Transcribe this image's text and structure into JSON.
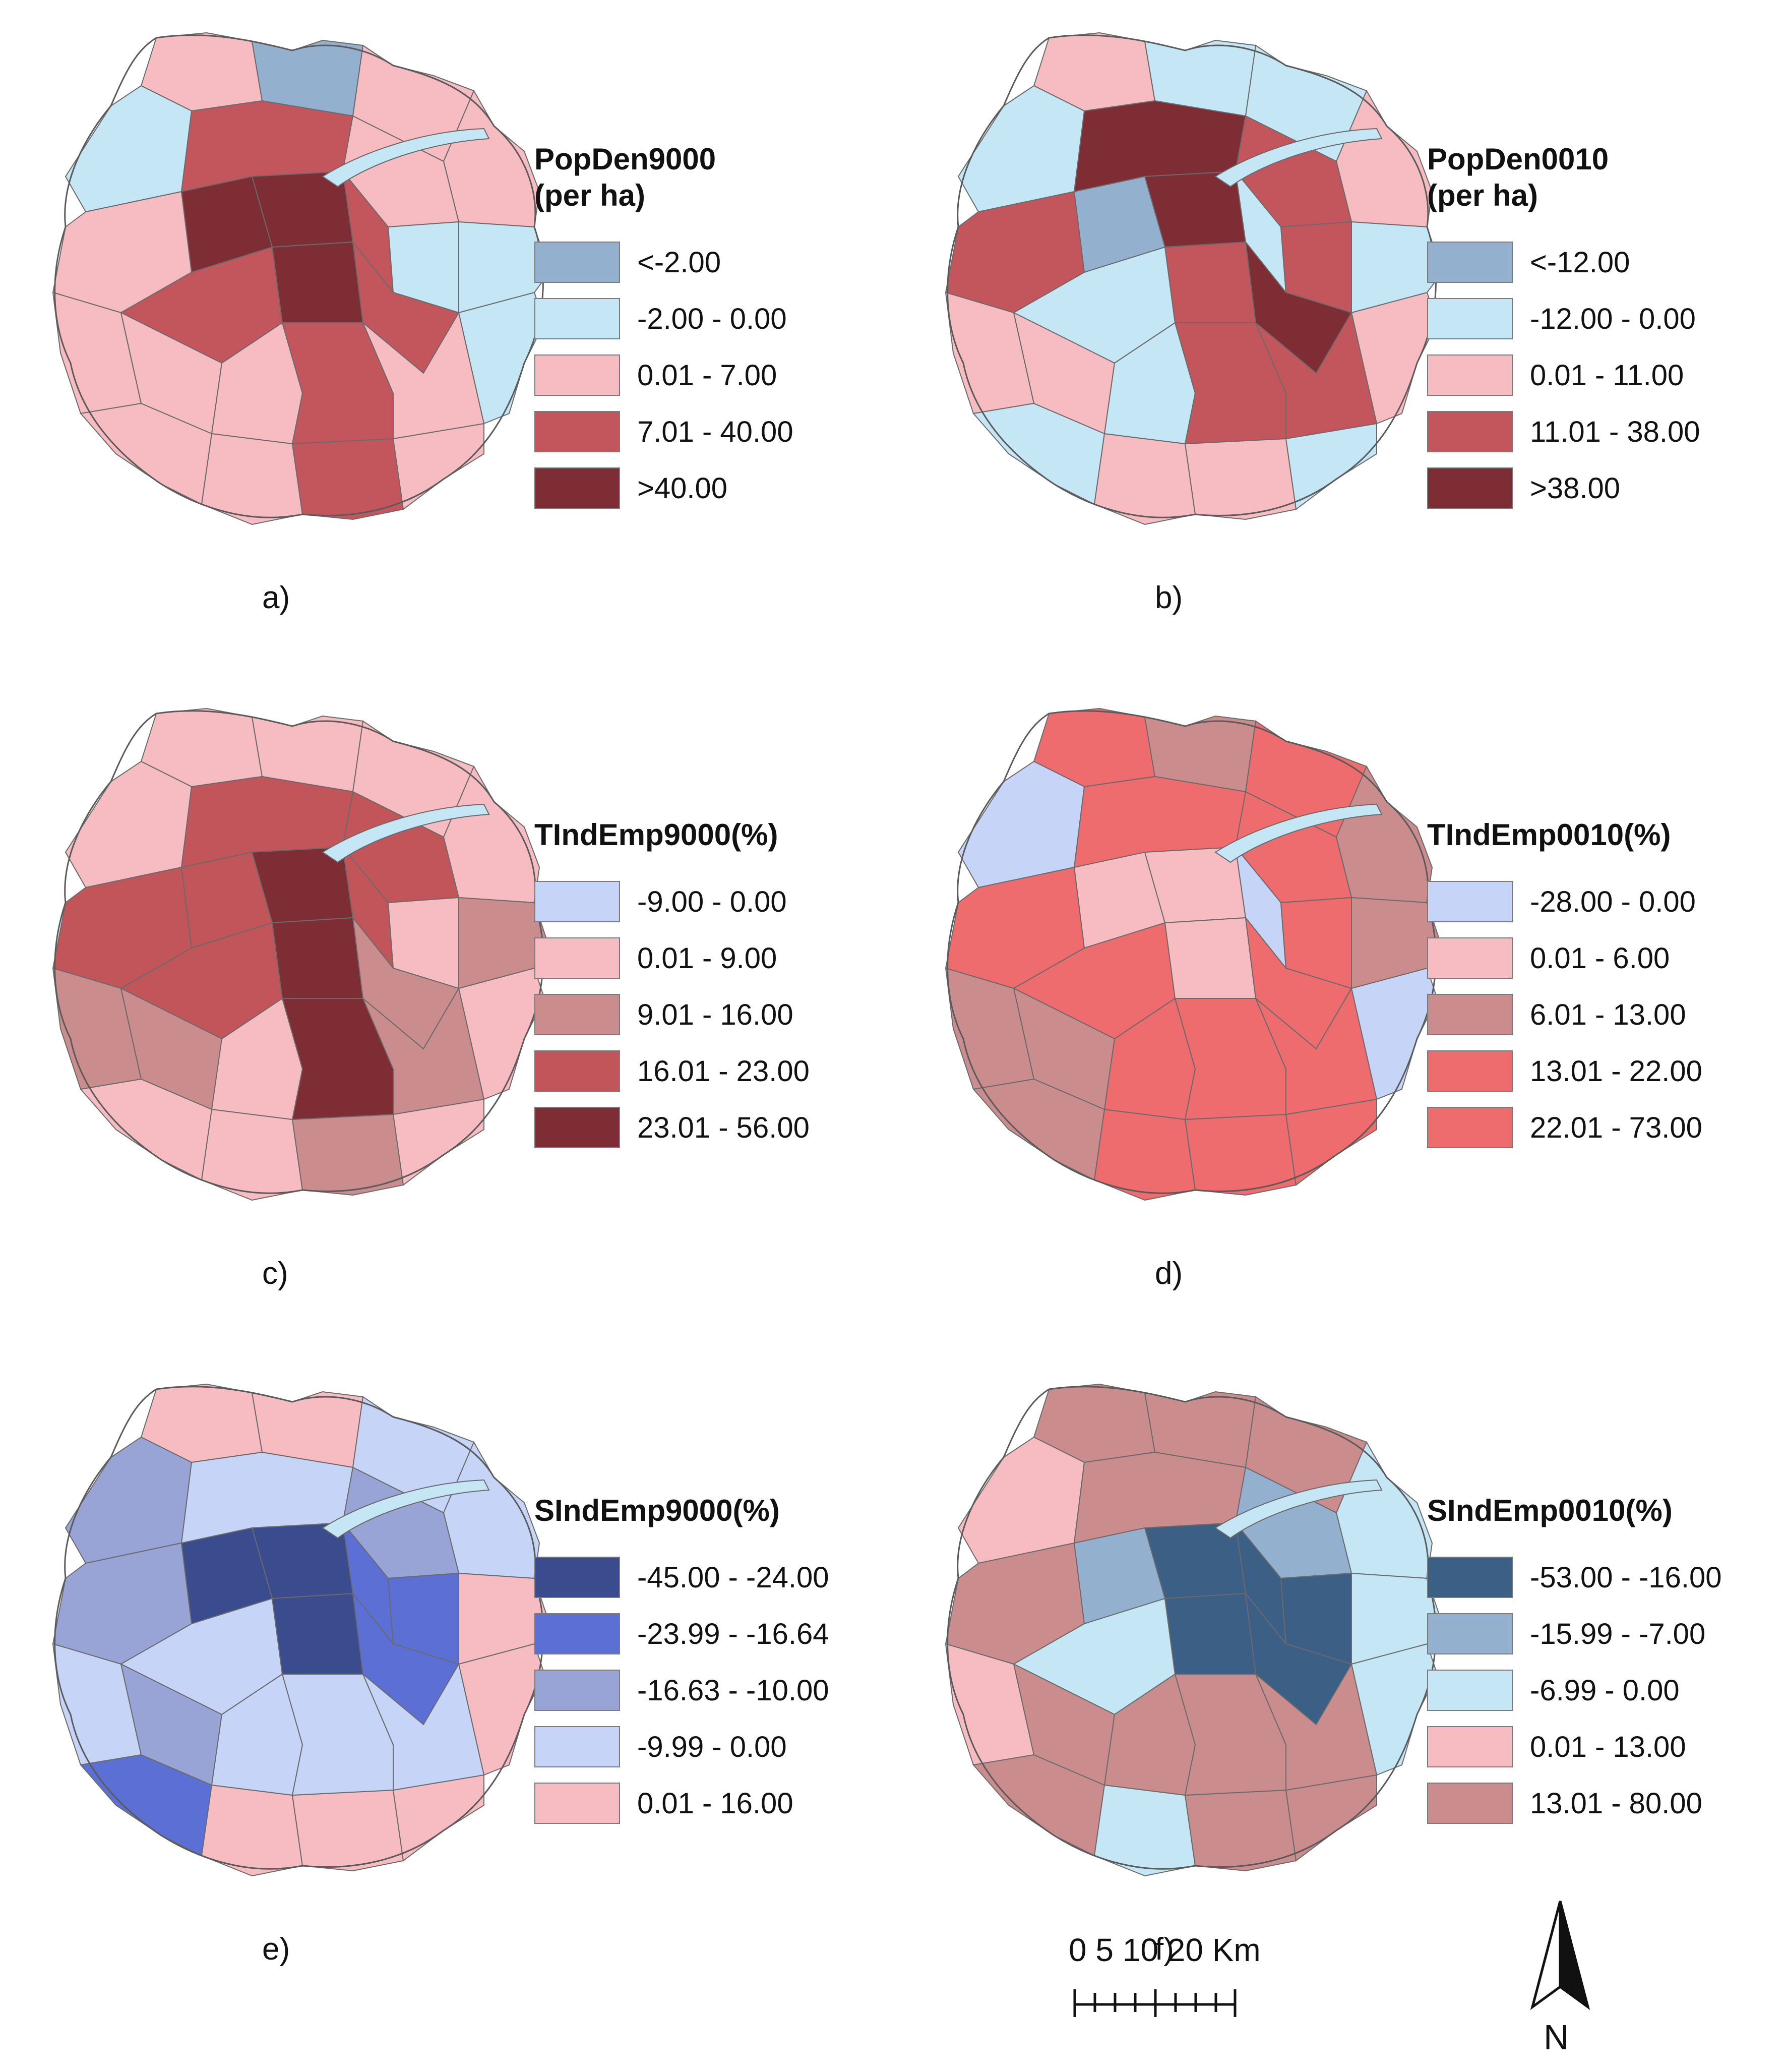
{
  "panels": [
    {
      "id": "a",
      "legend_title": "PopDen9000\n(per ha)",
      "caption": "a)",
      "classes": [
        {
          "label": "<-2.00",
          "color": "#93b1cf"
        },
        {
          "label": "-2.00 - 0.00",
          "color": "#c4e6f5"
        },
        {
          "label": "0.01 - 7.00",
          "color": "#f7bcc1"
        },
        {
          "label": "7.01 - 40.00",
          "color": "#c2565c"
        },
        {
          "label": ">40.00",
          "color": "#7e2d35"
        }
      ]
    },
    {
      "id": "b",
      "legend_title": "PopDen0010\n(per ha)",
      "caption": "b)",
      "classes": [
        {
          "label": "<-12.00",
          "color": "#93b1cf"
        },
        {
          "label": "-12.00 - 0.00",
          "color": "#c4e6f5"
        },
        {
          "label": "0.01 - 11.00",
          "color": "#f7bcc1"
        },
        {
          "label": "11.01 - 38.00",
          "color": "#c2565c"
        },
        {
          "label": ">38.00",
          "color": "#7e2d35"
        }
      ]
    },
    {
      "id": "c",
      "legend_title": "TIndEmp9000(%)",
      "caption": "c)",
      "classes": [
        {
          "label": "-9.00 - 0.00",
          "color": "#c6d5f7"
        },
        {
          "label": "0.01 - 9.00",
          "color": "#f7bcc1"
        },
        {
          "label": "9.01 - 16.00",
          "color": "#cb8c8e"
        },
        {
          "label": "16.01 - 23.00",
          "color": "#c25559"
        },
        {
          "label": "23.01 - 56.00",
          "color": "#7e2d35"
        }
      ]
    },
    {
      "id": "d",
      "legend_title": "TIndEmp0010(%)",
      "caption": "d)",
      "classes": [
        {
          "label": "-28.00 - 0.00",
          "color": "#c6d5f7"
        },
        {
          "label": "0.01 - 6.00",
          "color": "#f7bcc1"
        },
        {
          "label": "6.01 - 13.00",
          "color": "#cb8c8e"
        },
        {
          "label": "13.01 - 22.00",
          "color": "#ee6b6e"
        },
        {
          "label": "22.01 - 73.00",
          "color": "#ee6b6e"
        }
      ]
    },
    {
      "id": "e",
      "legend_title": "SIndEmp9000(%)",
      "caption": "e)",
      "classes": [
        {
          "label": "-45.00 - -24.00",
          "color": "#3a4c8e"
        },
        {
          "label": "-23.99 - -16.64",
          "color": "#5b6fd4"
        },
        {
          "label": "-16.63 - -10.00",
          "color": "#98a4d6"
        },
        {
          "label": "-9.99 - 0.00",
          "color": "#c6d5f7"
        },
        {
          "label": "0.01 - 16.00",
          "color": "#f7bcc1"
        }
      ]
    },
    {
      "id": "f",
      "legend_title": "SIndEmp0010(%)",
      "caption": "f)",
      "classes": [
        {
          "label": "-53.00 - -16.00",
          "color": "#3c5f85"
        },
        {
          "label": "-15.99 - -7.00",
          "color": "#93b1cf"
        },
        {
          "label": "-6.99 - 0.00",
          "color": "#c4e6f5"
        },
        {
          "label": "0.01 - 13.00",
          "color": "#f7bcc1"
        },
        {
          "label": "13.01 - 80.00",
          "color": "#cb8c8e"
        }
      ]
    }
  ],
  "scale_bar": {
    "label": "0  5 10      20 Km"
  },
  "north_arrow": {
    "label": "N"
  }
}
